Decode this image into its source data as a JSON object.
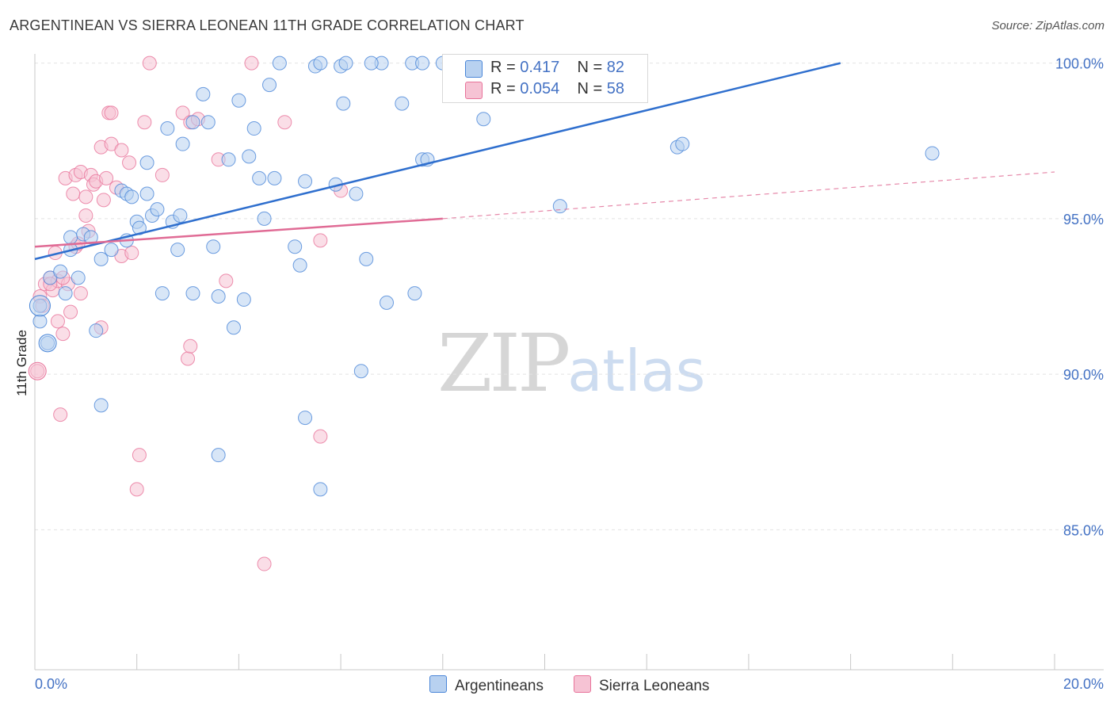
{
  "title": "ARGENTINEAN VS SIERRA LEONEAN 11TH GRADE CORRELATION CHART",
  "source": "Source: ZipAtlas.com",
  "watermark": {
    "zip": "ZIP",
    "atlas": "atlas"
  },
  "colors": {
    "blue": "#4a86d8",
    "blue_fill": "#b8d1f0",
    "blue_line": "#2f6fce",
    "pink": "#e8739a",
    "pink_fill": "#f6c3d4",
    "pink_line": "#e06b95",
    "grid": "#e2e2e2",
    "axis_text": "#4472c4"
  },
  "legend": {
    "rows": [
      {
        "r_label": "R = ",
        "r_value": "0.417",
        "n_label": "N = ",
        "n_value": "82"
      },
      {
        "r_label": "R = ",
        "r_value": "0.054",
        "n_label": "N = ",
        "n_value": "58"
      }
    ]
  },
  "bottom_legend": [
    "Argentineans",
    "Sierra Leoneans"
  ],
  "chart_data": {
    "type": "scatter",
    "title": "ARGENTINEAN VS SIERRA LEONEAN 11TH GRADE CORRELATION CHART",
    "xlabel": "",
    "ylabel": "11th Grade",
    "xlim": [
      0,
      20
    ],
    "ylim": [
      80.5,
      100.5
    ],
    "x_tick_labels": [
      "0.0%",
      "20.0%"
    ],
    "y_ticks": [
      85,
      90,
      95,
      100
    ],
    "y_tick_labels": [
      "85.0%",
      "90.0%",
      "95.0%",
      "100.0%"
    ],
    "series": [
      {
        "name": "Argentineans",
        "R": 0.417,
        "N": 82,
        "trend": {
          "x0": 0.0,
          "y0": 93.7,
          "x1": 15.8,
          "y1": 100.0,
          "style": "solid"
        },
        "points": [
          [
            0.1,
            92.2
          ],
          [
            0.1,
            91.7
          ],
          [
            0.25,
            91.0
          ],
          [
            0.3,
            93.1
          ],
          [
            0.5,
            93.3
          ],
          [
            0.6,
            92.6
          ],
          [
            0.7,
            94.0
          ],
          [
            0.7,
            94.4
          ],
          [
            0.85,
            93.1
          ],
          [
            0.95,
            94.5
          ],
          [
            1.1,
            94.4
          ],
          [
            1.2,
            91.4
          ],
          [
            1.3,
            89.0
          ],
          [
            1.3,
            93.7
          ],
          [
            1.5,
            94.0
          ],
          [
            1.7,
            95.9
          ],
          [
            1.8,
            95.8
          ],
          [
            1.8,
            94.3
          ],
          [
            1.9,
            95.7
          ],
          [
            2.0,
            94.9
          ],
          [
            2.05,
            94.7
          ],
          [
            2.2,
            95.8
          ],
          [
            2.2,
            96.8
          ],
          [
            2.3,
            95.1
          ],
          [
            2.4,
            95.3
          ],
          [
            2.5,
            92.6
          ],
          [
            2.6,
            97.9
          ],
          [
            2.7,
            94.9
          ],
          [
            2.8,
            94.0
          ],
          [
            2.85,
            95.1
          ],
          [
            2.9,
            97.4
          ],
          [
            3.1,
            98.1
          ],
          [
            3.1,
            92.6
          ],
          [
            3.3,
            99.0
          ],
          [
            3.4,
            98.1
          ],
          [
            3.5,
            94.1
          ],
          [
            3.6,
            92.5
          ],
          [
            3.6,
            87.4
          ],
          [
            3.8,
            96.9
          ],
          [
            3.9,
            91.5
          ],
          [
            4.0,
            98.8
          ],
          [
            4.1,
            92.4
          ],
          [
            4.2,
            97.0
          ],
          [
            4.3,
            97.9
          ],
          [
            4.4,
            96.3
          ],
          [
            4.5,
            95.0
          ],
          [
            4.6,
            99.3
          ],
          [
            4.7,
            96.3
          ],
          [
            4.8,
            100.0
          ],
          [
            5.1,
            94.1
          ],
          [
            5.2,
            93.5
          ],
          [
            5.3,
            96.2
          ],
          [
            5.3,
            88.6
          ],
          [
            5.5,
            99.9
          ],
          [
            5.6,
            100.0
          ],
          [
            5.6,
            86.3
          ],
          [
            5.9,
            96.1
          ],
          [
            6.0,
            99.9
          ],
          [
            6.05,
            98.7
          ],
          [
            6.1,
            100.0
          ],
          [
            6.3,
            95.8
          ],
          [
            6.4,
            90.1
          ],
          [
            6.5,
            93.7
          ],
          [
            6.8,
            100.0
          ],
          [
            6.9,
            92.3
          ],
          [
            7.2,
            98.7
          ],
          [
            7.4,
            100.0
          ],
          [
            7.6,
            100.0
          ],
          [
            7.45,
            92.6
          ],
          [
            7.6,
            96.9
          ],
          [
            7.7,
            96.9
          ],
          [
            8.0,
            100.0
          ],
          [
            8.5,
            100.0
          ],
          [
            8.8,
            98.2
          ],
          [
            9.2,
            100.0
          ],
          [
            9.4,
            100.0
          ],
          [
            10.3,
            95.4
          ],
          [
            12.6,
            97.3
          ],
          [
            12.7,
            97.4
          ],
          [
            17.6,
            97.1
          ],
          [
            9.9,
            100.0
          ],
          [
            6.6,
            100.0
          ]
        ]
      },
      {
        "name": "Sierra Leoneans",
        "R": 0.054,
        "N": 58,
        "trend": {
          "x0": 0.0,
          "y0": 94.1,
          "x1": 8.0,
          "y1": 95.0,
          "style": "solid",
          "dashed_to": {
            "x": 20.0,
            "y": 96.5
          }
        },
        "points": [
          [
            0.05,
            90.1
          ],
          [
            0.1,
            92.5
          ],
          [
            0.15,
            92.2
          ],
          [
            0.2,
            92.9
          ],
          [
            0.3,
            93.1
          ],
          [
            0.35,
            92.7
          ],
          [
            0.4,
            93.9
          ],
          [
            0.45,
            91.7
          ],
          [
            0.45,
            93.0
          ],
          [
            0.5,
            88.7
          ],
          [
            0.55,
            91.3
          ],
          [
            0.6,
            96.3
          ],
          [
            0.65,
            92.9
          ],
          [
            0.7,
            92.0
          ],
          [
            0.75,
            95.8
          ],
          [
            0.8,
            96.4
          ],
          [
            0.8,
            94.1
          ],
          [
            0.9,
            96.5
          ],
          [
            0.9,
            92.6
          ],
          [
            1.0,
            95.1
          ],
          [
            1.0,
            95.7
          ],
          [
            1.05,
            94.6
          ],
          [
            1.1,
            96.4
          ],
          [
            1.15,
            96.1
          ],
          [
            1.2,
            96.2
          ],
          [
            1.3,
            91.5
          ],
          [
            1.3,
            97.3
          ],
          [
            1.35,
            95.6
          ],
          [
            1.4,
            96.3
          ],
          [
            1.45,
            98.4
          ],
          [
            1.5,
            97.4
          ],
          [
            1.5,
            98.4
          ],
          [
            1.6,
            96.0
          ],
          [
            1.7,
            93.8
          ],
          [
            1.7,
            97.2
          ],
          [
            1.85,
            96.8
          ],
          [
            2.0,
            86.3
          ],
          [
            2.05,
            87.4
          ],
          [
            2.15,
            98.1
          ],
          [
            2.25,
            100.0
          ],
          [
            2.5,
            96.4
          ],
          [
            2.9,
            98.4
          ],
          [
            3.0,
            90.5
          ],
          [
            3.05,
            90.9
          ],
          [
            3.05,
            98.1
          ],
          [
            3.6,
            96.9
          ],
          [
            3.75,
            93.0
          ],
          [
            4.25,
            100.0
          ],
          [
            4.5,
            83.9
          ],
          [
            4.9,
            98.1
          ],
          [
            5.6,
            94.3
          ],
          [
            5.6,
            88.0
          ],
          [
            6.0,
            95.9
          ],
          [
            1.9,
            93.9
          ],
          [
            0.85,
            94.2
          ],
          [
            0.55,
            93.1
          ],
          [
            0.3,
            92.9
          ],
          [
            3.2,
            98.2
          ]
        ]
      }
    ]
  }
}
